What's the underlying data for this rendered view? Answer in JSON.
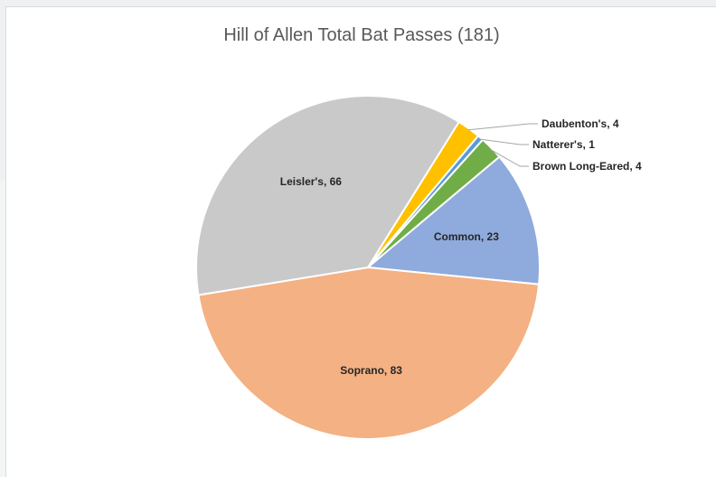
{
  "chart_data": {
    "type": "pie",
    "title": "Hill of Allen Total Bat Passes (181)",
    "start_category": "Daubenton's",
    "slices": [
      {
        "label": "Daubenton's",
        "value": 4,
        "color": "#ffc000",
        "display": "Daubenton's, 4",
        "label_style": "callout"
      },
      {
        "label": "Natterer's",
        "value": 1,
        "color": "#5b9bd5",
        "display": "Natterer's, 1",
        "label_style": "callout"
      },
      {
        "label": "Brown Long-Eared",
        "value": 4,
        "color": "#70ad47",
        "display": "Brown Long-Eared, 4",
        "label_style": "callout"
      },
      {
        "label": "Common",
        "value": 23,
        "color": "#8faadc",
        "display": "Common, 23",
        "label_style": "inside"
      },
      {
        "label": "Soprano",
        "value": 83,
        "color": "#f4b183",
        "display": "Soprano, 83",
        "label_style": "inside"
      },
      {
        "label": "Leisler's",
        "value": 66,
        "color": "#c9c9c9",
        "display": "Leisler's, 66",
        "label_style": "inside"
      }
    ],
    "legend": "none"
  }
}
